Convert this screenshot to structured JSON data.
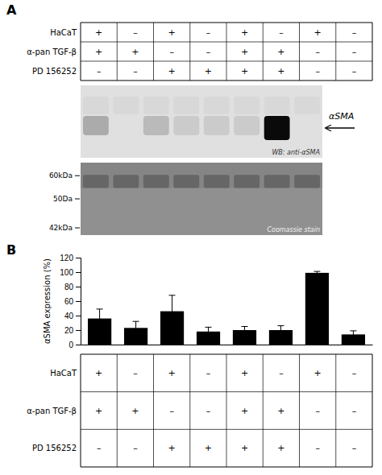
{
  "chart_data": {
    "type": "bar",
    "panel_labels": [
      "A",
      "B"
    ],
    "categories": [
      null,
      null,
      null,
      null,
      null,
      null,
      null,
      null
    ],
    "values": [
      36,
      23,
      46,
      18,
      20,
      20,
      99,
      14
    ],
    "errors": [
      13,
      9,
      22,
      6,
      5,
      6,
      2,
      5
    ],
    "color": "#000000",
    "ylabel": "αSMA expression (%)",
    "ylim": [
      0,
      120
    ],
    "yticks": [
      0,
      20,
      40,
      60,
      80,
      100,
      120
    ],
    "tables": [
      {
        "rows": [
          "HaCaT",
          "α-pan TGF-β",
          "PD 156252"
        ],
        "cells": [
          [
            "+",
            "–",
            "+",
            "–",
            "+",
            "–",
            "+",
            "–"
          ],
          [
            "+",
            "+",
            "–",
            "–",
            "+",
            "+",
            "–",
            "–"
          ],
          [
            "–",
            "–",
            "+",
            "+",
            "+",
            "+",
            "–",
            "–"
          ]
        ]
      },
      {
        "rows": [
          "HaCaT",
          "α-pan TGF-β",
          "PD 156252"
        ],
        "cells": [
          [
            "+",
            "–",
            "+",
            "–",
            "+",
            "–",
            "+",
            "–"
          ],
          [
            "+",
            "+",
            "–",
            "–",
            "+",
            "+",
            "–",
            "–"
          ],
          [
            "–",
            "–",
            "+",
            "+",
            "+",
            "+",
            "–",
            "–"
          ]
        ]
      }
    ],
    "blot_labels": {
      "western_blot": "WB: anti-αSMA",
      "arrow": "αSMA",
      "coomassie": "Coomassie stain"
    },
    "kda_labels": [
      "60kDa",
      "50Da",
      "42kDa"
    ]
  }
}
